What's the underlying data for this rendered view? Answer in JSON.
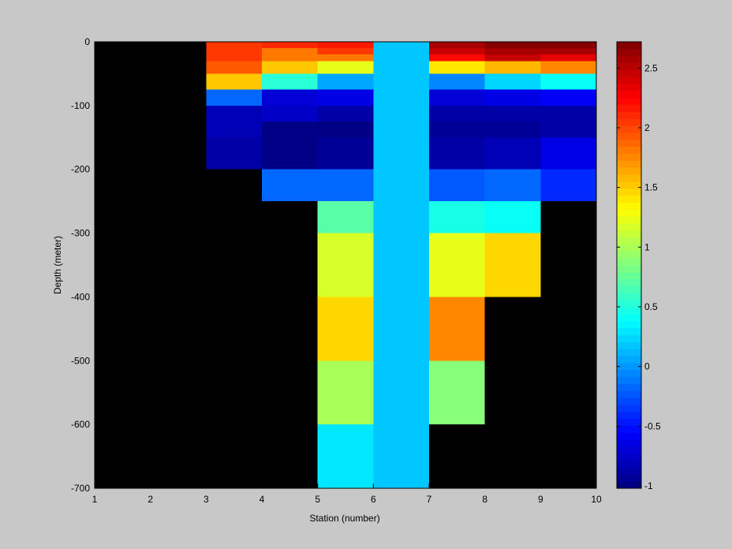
{
  "chart_data": {
    "type": "heatmap",
    "xlabel": "Station (number)",
    "ylabel": "Depth (meter)",
    "xlim": [
      1,
      10
    ],
    "ylim": [
      -700,
      0
    ],
    "xticks": [
      "1",
      "2",
      "3",
      "4",
      "5",
      "6",
      "7",
      "8",
      "9",
      "10"
    ],
    "yticks": [
      "0",
      "-100",
      "-200",
      "-300",
      "-400",
      "-500",
      "-600",
      "-700"
    ],
    "colorbar": {
      "range": [
        -1.02,
        2.72
      ],
      "ticks": [
        "-1",
        "-0.5",
        "0",
        "0.5",
        "1",
        "1.5",
        "2",
        "2.5"
      ],
      "colormap": "jet-like"
    },
    "background_color": "#000000",
    "cells": [
      {
        "x0": 3,
        "x1": 4,
        "d0": 0,
        "d1": 10,
        "value": 2.05
      },
      {
        "x0": 3,
        "x1": 4,
        "d0": 10,
        "d1": 30,
        "value": 2.05
      },
      {
        "x0": 3,
        "x1": 4,
        "d0": 30,
        "d1": 50,
        "value": 1.95
      },
      {
        "x0": 3,
        "x1": 4,
        "d0": 50,
        "d1": 75,
        "value": 1.5
      },
      {
        "x0": 3,
        "x1": 4,
        "d0": 75,
        "d1": 100,
        "value": -0.2
      },
      {
        "x0": 3,
        "x1": 4,
        "d0": 100,
        "d1": 150,
        "value": -0.8
      },
      {
        "x0": 3,
        "x1": 4,
        "d0": 150,
        "d1": 200,
        "value": -0.9
      },
      {
        "x0": 4,
        "x1": 5,
        "d0": 0,
        "d1": 10,
        "value": 2.1
      },
      {
        "x0": 4,
        "x1": 5,
        "d0": 10,
        "d1": 30,
        "value": 1.8
      },
      {
        "x0": 4,
        "x1": 5,
        "d0": 30,
        "d1": 50,
        "value": 1.5
      },
      {
        "x0": 4,
        "x1": 5,
        "d0": 50,
        "d1": 75,
        "value": 0.5
      },
      {
        "x0": 4,
        "x1": 5,
        "d0": 75,
        "d1": 100,
        "value": -0.7
      },
      {
        "x0": 4,
        "x1": 5,
        "d0": 100,
        "d1": 125,
        "value": -0.75
      },
      {
        "x0": 4,
        "x1": 5,
        "d0": 125,
        "d1": 150,
        "value": -1.0
      },
      {
        "x0": 4,
        "x1": 5,
        "d0": 150,
        "d1": 200,
        "value": -1.0
      },
      {
        "x0": 4,
        "x1": 5,
        "d0": 200,
        "d1": 250,
        "value": -0.2
      },
      {
        "x0": 5,
        "x1": 6,
        "d0": 0,
        "d1": 10,
        "value": 2.15
      },
      {
        "x0": 5,
        "x1": 6,
        "d0": 10,
        "d1": 20,
        "value": 2.05
      },
      {
        "x0": 5,
        "x1": 6,
        "d0": 20,
        "d1": 30,
        "value": 1.8
      },
      {
        "x0": 5,
        "x1": 6,
        "d0": 30,
        "d1": 50,
        "value": 1.25
      },
      {
        "x0": 5,
        "x1": 6,
        "d0": 50,
        "d1": 75,
        "value": 0.05
      },
      {
        "x0": 5,
        "x1": 6,
        "d0": 75,
        "d1": 100,
        "value": -0.65
      },
      {
        "x0": 5,
        "x1": 6,
        "d0": 100,
        "d1": 125,
        "value": -0.9
      },
      {
        "x0": 5,
        "x1": 6,
        "d0": 125,
        "d1": 150,
        "value": -1.0
      },
      {
        "x0": 5,
        "x1": 6,
        "d0": 150,
        "d1": 200,
        "value": -0.95
      },
      {
        "x0": 5,
        "x1": 6,
        "d0": 200,
        "d1": 250,
        "value": -0.2
      },
      {
        "x0": 5,
        "x1": 6,
        "d0": 250,
        "d1": 300,
        "value": 0.7
      },
      {
        "x0": 5,
        "x1": 6,
        "d0": 300,
        "d1": 400,
        "value": 1.2
      },
      {
        "x0": 5,
        "x1": 6,
        "d0": 400,
        "d1": 500,
        "value": 1.45
      },
      {
        "x0": 5,
        "x1": 6,
        "d0": 500,
        "d1": 600,
        "value": 1.02
      },
      {
        "x0": 5,
        "x1": 6,
        "d0": 600,
        "d1": 700,
        "value": 0.3
      },
      {
        "x0": 6,
        "x1": 7,
        "d0": 0,
        "d1": 700,
        "value": 0.2
      },
      {
        "x0": 7,
        "x1": 8,
        "d0": 0,
        "d1": 10,
        "value": 2.55
      },
      {
        "x0": 7,
        "x1": 8,
        "d0": 10,
        "d1": 20,
        "value": 2.45
      },
      {
        "x0": 7,
        "x1": 8,
        "d0": 20,
        "d1": 30,
        "value": 2.2
      },
      {
        "x0": 7,
        "x1": 8,
        "d0": 30,
        "d1": 50,
        "value": 1.4
      },
      {
        "x0": 7,
        "x1": 8,
        "d0": 50,
        "d1": 75,
        "value": -0.05
      },
      {
        "x0": 7,
        "x1": 8,
        "d0": 75,
        "d1": 100,
        "value": -0.7
      },
      {
        "x0": 7,
        "x1": 8,
        "d0": 100,
        "d1": 125,
        "value": -0.9
      },
      {
        "x0": 7,
        "x1": 8,
        "d0": 125,
        "d1": 150,
        "value": -0.95
      },
      {
        "x0": 7,
        "x1": 8,
        "d0": 150,
        "d1": 200,
        "value": -0.85
      },
      {
        "x0": 7,
        "x1": 8,
        "d0": 200,
        "d1": 250,
        "value": -0.25
      },
      {
        "x0": 7,
        "x1": 8,
        "d0": 250,
        "d1": 300,
        "value": 0.45
      },
      {
        "x0": 7,
        "x1": 8,
        "d0": 300,
        "d1": 400,
        "value": 1.25
      },
      {
        "x0": 7,
        "x1": 8,
        "d0": 400,
        "d1": 500,
        "value": 1.75
      },
      {
        "x0": 7,
        "x1": 8,
        "d0": 500,
        "d1": 600,
        "value": 0.85
      },
      {
        "x0": 8,
        "x1": 9,
        "d0": 0,
        "d1": 10,
        "value": 2.7
      },
      {
        "x0": 8,
        "x1": 9,
        "d0": 10,
        "d1": 20,
        "value": 2.6
      },
      {
        "x0": 8,
        "x1": 9,
        "d0": 20,
        "d1": 30,
        "value": 2.45
      },
      {
        "x0": 8,
        "x1": 9,
        "d0": 30,
        "d1": 50,
        "value": 1.6
      },
      {
        "x0": 8,
        "x1": 9,
        "d0": 50,
        "d1": 75,
        "value": 0.25
      },
      {
        "x0": 8,
        "x1": 9,
        "d0": 75,
        "d1": 100,
        "value": -0.65
      },
      {
        "x0": 8,
        "x1": 9,
        "d0": 100,
        "d1": 125,
        "value": -0.9
      },
      {
        "x0": 8,
        "x1": 9,
        "d0": 125,
        "d1": 150,
        "value": -0.95
      },
      {
        "x0": 8,
        "x1": 9,
        "d0": 150,
        "d1": 200,
        "value": -0.8
      },
      {
        "x0": 8,
        "x1": 9,
        "d0": 200,
        "d1": 250,
        "value": -0.2
      },
      {
        "x0": 8,
        "x1": 9,
        "d0": 250,
        "d1": 300,
        "value": 0.4
      },
      {
        "x0": 8,
        "x1": 9,
        "d0": 300,
        "d1": 400,
        "value": 1.45
      },
      {
        "x0": 9,
        "x1": 10,
        "d0": 0,
        "d1": 10,
        "value": 2.7
      },
      {
        "x0": 9,
        "x1": 10,
        "d0": 10,
        "d1": 20,
        "value": 2.6
      },
      {
        "x0": 9,
        "x1": 10,
        "d0": 20,
        "d1": 30,
        "value": 2.35
      },
      {
        "x0": 9,
        "x1": 10,
        "d0": 30,
        "d1": 50,
        "value": 1.75
      },
      {
        "x0": 9,
        "x1": 10,
        "d0": 50,
        "d1": 75,
        "value": 0.4
      },
      {
        "x0": 9,
        "x1": 10,
        "d0": 75,
        "d1": 100,
        "value": -0.6
      },
      {
        "x0": 9,
        "x1": 10,
        "d0": 100,
        "d1": 125,
        "value": -0.85
      },
      {
        "x0": 9,
        "x1": 10,
        "d0": 125,
        "d1": 150,
        "value": -0.9
      },
      {
        "x0": 9,
        "x1": 10,
        "d0": 150,
        "d1": 200,
        "value": -0.65
      },
      {
        "x0": 9,
        "x1": 10,
        "d0": 200,
        "d1": 250,
        "value": -0.4
      }
    ]
  }
}
